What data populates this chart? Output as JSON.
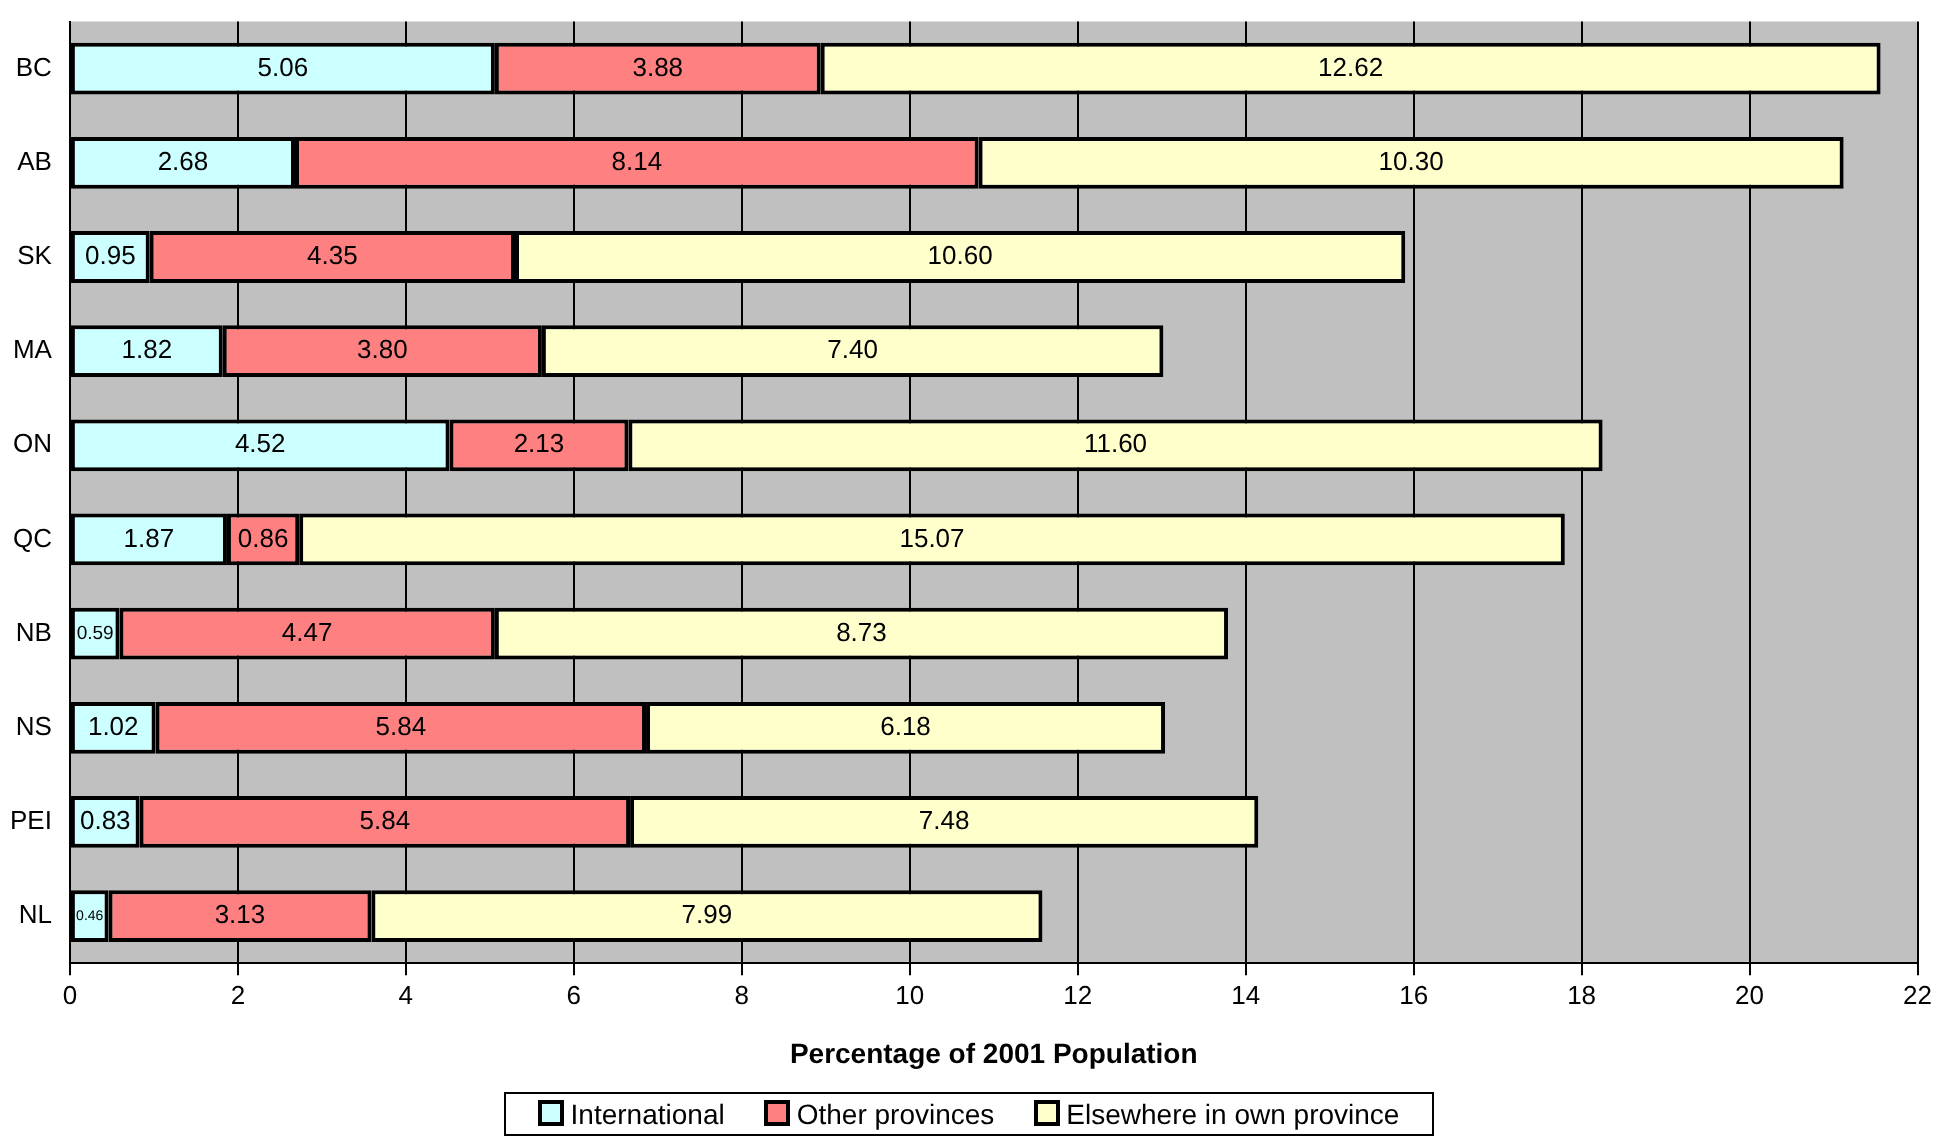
{
  "chart_data": {
    "type": "bar",
    "orientation": "horizontal",
    "stacked": true,
    "xlabel": "Percentage of 2001 Population",
    "categories": [
      "BC",
      "AB",
      "SK",
      "MA",
      "ON",
      "QC",
      "NB",
      "NS",
      "PEI",
      "NL"
    ],
    "series": [
      {
        "name": "International",
        "color": "#ccffff",
        "values": [
          5.06,
          2.68,
          0.95,
          1.82,
          4.52,
          1.87,
          0.59,
          1.02,
          0.83,
          0.46
        ],
        "value_labels": [
          "5.06",
          "2.68",
          "0.95",
          "1.82",
          "4.52",
          "1.87",
          "0.59",
          "1.02",
          "0.83",
          "0.46"
        ]
      },
      {
        "name": "Other provinces",
        "color": "#ff8080",
        "values": [
          3.88,
          8.14,
          4.35,
          3.8,
          2.13,
          0.86,
          4.47,
          5.84,
          5.84,
          3.13
        ],
        "value_labels": [
          "3.88",
          "8.14",
          "4.35",
          "3.80",
          "2.13",
          "0.86",
          "4.47",
          "5.84",
          "5.84",
          "3.13"
        ]
      },
      {
        "name": "Elsewhere in own province",
        "color": "#ffffcc",
        "values": [
          12.62,
          10.3,
          10.6,
          7.4,
          11.6,
          15.07,
          8.73,
          6.18,
          7.48,
          7.99
        ],
        "value_labels": [
          "12.62",
          "10.30",
          "10.60",
          "7.40",
          "11.60",
          "15.07",
          "8.73",
          "6.18",
          "7.48",
          "7.99"
        ]
      }
    ],
    "xlim": [
      0,
      22
    ],
    "xticks": [
      0,
      2,
      4,
      6,
      8,
      10,
      12,
      14,
      16,
      18,
      20,
      22
    ],
    "grid": "x",
    "legend": "bottom"
  }
}
